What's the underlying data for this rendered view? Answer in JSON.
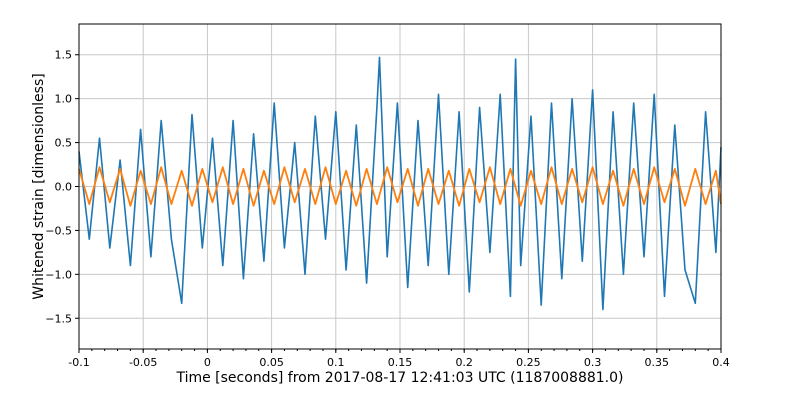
{
  "chart_data": {
    "type": "line",
    "title": "",
    "xlabel": "Time [seconds] from 2017-08-17 12:41:03 UTC (1187008881.0)",
    "ylabel": "Whitened strain [dimensionless]",
    "xlim": [
      -0.1,
      0.4
    ],
    "ylim": [
      -1.85,
      1.85
    ],
    "grid": true,
    "x_ticks": [
      -0.1,
      -0.05,
      0,
      0.05,
      0.1,
      0.15,
      0.2,
      0.25,
      0.3,
      0.35,
      0.4
    ],
    "x_tick_labels": [
      "-0.1",
      "-0.05",
      "0",
      "0.05",
      "0.1",
      "0.15",
      "0.2",
      "0.25",
      "0.3",
      "0.35",
      "0.4"
    ],
    "y_ticks": [
      -1.5,
      -1.0,
      -0.5,
      0.0,
      0.5,
      1.0,
      1.5
    ],
    "y_tick_labels": [
      "−1.5",
      "−1.0",
      "−0.5",
      "0.0",
      "0.5",
      "1.0",
      "1.5"
    ],
    "series": [
      {
        "color": "#1f77b4",
        "x": [
          -0.1,
          -0.092,
          -0.084,
          -0.076,
          -0.068,
          -0.06,
          -0.052,
          -0.044,
          -0.036,
          -0.028,
          -0.02,
          -0.012,
          -0.004,
          0.004,
          0.012,
          0.02,
          0.028,
          0.036,
          0.044,
          0.052,
          0.06,
          0.068,
          0.076,
          0.084,
          0.092,
          0.1,
          0.108,
          0.116,
          0.124,
          0.132,
          0.134,
          0.14,
          0.148,
          0.156,
          0.164,
          0.172,
          0.18,
          0.188,
          0.196,
          0.204,
          0.212,
          0.22,
          0.228,
          0.236,
          0.24,
          0.244,
          0.252,
          0.26,
          0.268,
          0.276,
          0.284,
          0.292,
          0.3,
          0.308,
          0.316,
          0.324,
          0.332,
          0.34,
          0.348,
          0.356,
          0.364,
          0.372,
          0.38,
          0.388,
          0.396,
          0.4
        ],
        "y": [
          0.4,
          -0.6,
          0.55,
          -0.7,
          0.3,
          -0.9,
          0.65,
          -0.8,
          0.75,
          -0.6,
          -1.33,
          0.82,
          -0.7,
          0.55,
          -0.9,
          0.75,
          -1.05,
          0.6,
          -0.85,
          0.95,
          -0.7,
          0.5,
          -1.0,
          0.8,
          -0.6,
          0.85,
          -0.95,
          0.7,
          -1.1,
          0.9,
          1.47,
          -0.8,
          0.95,
          -1.15,
          0.75,
          -0.9,
          1.05,
          -1.0,
          0.85,
          -1.2,
          0.9,
          -0.75,
          1.05,
          -1.25,
          1.45,
          -0.9,
          0.8,
          -1.35,
          0.95,
          -1.05,
          1.0,
          -0.85,
          1.1,
          -1.4,
          0.85,
          -1.0,
          0.95,
          -0.8,
          1.05,
          -1.25,
          0.7,
          -0.95,
          -1.33,
          0.85,
          -0.75,
          0.45
        ]
      },
      {
        "color": "#ff7f0e",
        "x": [
          -0.1,
          -0.092,
          -0.084,
          -0.076,
          -0.068,
          -0.06,
          -0.052,
          -0.044,
          -0.036,
          -0.028,
          -0.02,
          -0.012,
          -0.004,
          0.004,
          0.012,
          0.02,
          0.028,
          0.036,
          0.044,
          0.052,
          0.06,
          0.068,
          0.076,
          0.084,
          0.092,
          0.1,
          0.108,
          0.116,
          0.124,
          0.132,
          0.14,
          0.148,
          0.156,
          0.164,
          0.172,
          0.18,
          0.188,
          0.196,
          0.204,
          0.212,
          0.22,
          0.228,
          0.236,
          0.244,
          0.252,
          0.26,
          0.268,
          0.276,
          0.284,
          0.292,
          0.3,
          0.308,
          0.316,
          0.324,
          0.332,
          0.34,
          0.348,
          0.356,
          0.364,
          0.372,
          0.38,
          0.388,
          0.396,
          0.4
        ],
        "y": [
          0.2,
          -0.2,
          0.22,
          -0.18,
          0.2,
          -0.22,
          0.18,
          -0.2,
          0.22,
          -0.2,
          0.18,
          -0.22,
          0.2,
          -0.18,
          0.22,
          -0.2,
          0.2,
          -0.22,
          0.18,
          -0.2,
          0.22,
          -0.18,
          0.2,
          -0.2,
          0.22,
          -0.2,
          0.18,
          -0.22,
          0.2,
          -0.2,
          0.22,
          -0.18,
          0.2,
          -0.22,
          0.2,
          -0.2,
          0.18,
          -0.22,
          0.2,
          -0.18,
          0.22,
          -0.2,
          0.2,
          -0.22,
          0.18,
          -0.2,
          0.22,
          -0.2,
          0.2,
          -0.18,
          0.22,
          -0.2,
          0.18,
          -0.22,
          0.2,
          -0.2,
          0.22,
          -0.18,
          0.2,
          -0.22,
          0.2,
          -0.2,
          0.18,
          -0.2
        ]
      }
    ]
  }
}
